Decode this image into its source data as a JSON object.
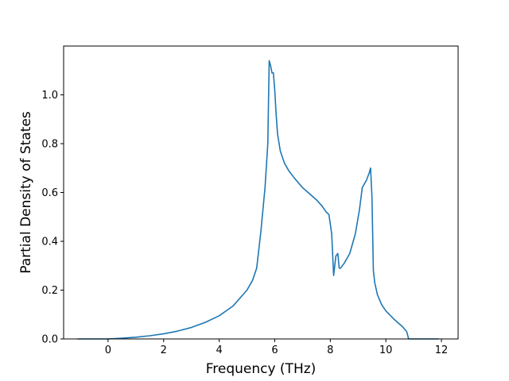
{
  "chart_data": {
    "type": "line",
    "title": "",
    "xlabel": "Frequency (THz)",
    "ylabel": "Partial Density of States",
    "xlim": [
      -1.6,
      12.6
    ],
    "ylim": [
      0.0,
      1.2
    ],
    "xticks": [
      0,
      2,
      4,
      6,
      8,
      10,
      12
    ],
    "xtick_labels": [
      "0",
      "2",
      "4",
      "6",
      "8",
      "10",
      "12"
    ],
    "yticks": [
      0.0,
      0.2,
      0.4,
      0.6,
      0.8,
      1.0
    ],
    "ytick_labels": [
      "0.0",
      "0.2",
      "0.4",
      "0.6",
      "0.8",
      "1.0"
    ],
    "grid": false,
    "legend": "none",
    "series": [
      {
        "color": "#1f77b4",
        "x": [
          -1.1,
          -0.5,
          0.0,
          0.5,
          1.0,
          1.5,
          2.0,
          2.5,
          3.0,
          3.5,
          4.0,
          4.5,
          5.0,
          5.2,
          5.35,
          5.5,
          5.65,
          5.75,
          5.8,
          5.85,
          5.9,
          5.95,
          6.0,
          6.05,
          6.1,
          6.2,
          6.35,
          6.5,
          6.7,
          7.0,
          7.2,
          7.5,
          7.7,
          7.85,
          7.95,
          8.05,
          8.12,
          8.2,
          8.27,
          8.32,
          8.37,
          8.5,
          8.7,
          8.9,
          9.05,
          9.15,
          9.2,
          9.3,
          9.4,
          9.45,
          9.5,
          9.55,
          9.6,
          9.7,
          9.85,
          10.0,
          10.3,
          10.6,
          10.75,
          10.82,
          10.9,
          11.2,
          11.9
        ],
        "y": [
          0.0,
          0.0,
          0.0,
          0.003,
          0.007,
          0.013,
          0.021,
          0.032,
          0.047,
          0.068,
          0.095,
          0.135,
          0.2,
          0.24,
          0.29,
          0.44,
          0.62,
          0.8,
          1.14,
          1.12,
          1.09,
          1.09,
          1.02,
          0.92,
          0.84,
          0.77,
          0.72,
          0.69,
          0.66,
          0.62,
          0.6,
          0.57,
          0.545,
          0.52,
          0.51,
          0.43,
          0.26,
          0.34,
          0.35,
          0.29,
          0.29,
          0.31,
          0.35,
          0.43,
          0.53,
          0.62,
          0.63,
          0.65,
          0.68,
          0.7,
          0.58,
          0.28,
          0.23,
          0.18,
          0.14,
          0.115,
          0.08,
          0.05,
          0.03,
          0.0,
          0.0,
          0.0,
          0.0
        ]
      }
    ]
  }
}
